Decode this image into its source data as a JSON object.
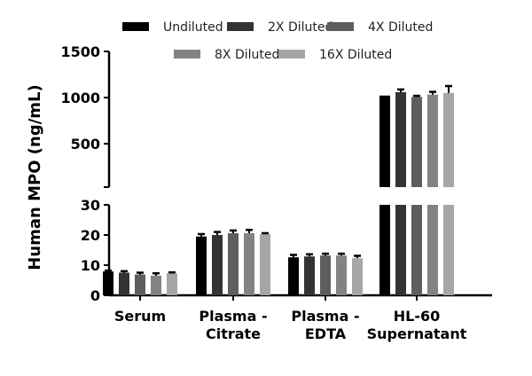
{
  "chart_data": {
    "type": "bar",
    "title": "",
    "xlabel": "",
    "ylabel": "Human MPO (ng/mL)",
    "categories": [
      [
        "Serum"
      ],
      [
        "Plasma -",
        "Citrate"
      ],
      [
        "Plasma -",
        "EDTA"
      ],
      [
        "HL-60",
        "Supernatant"
      ]
    ],
    "y_axis_broken": true,
    "ylim_lower": [
      0,
      30
    ],
    "ylim_upper": [
      30,
      1500
    ],
    "yticks_lower": [
      0,
      10,
      20,
      30
    ],
    "yticks_upper": [
      500,
      1000,
      1500
    ],
    "legend_position": "top",
    "series": [
      {
        "name": "Undiluted",
        "color": "#000000",
        "values": [
          7.9,
          19.5,
          12.6,
          1022
        ],
        "errors": [
          0.3,
          0.8,
          0.8,
          0
        ]
      },
      {
        "name": "2X Diluted",
        "color": "#333333",
        "values": [
          7.5,
          20.0,
          12.9,
          1058
        ],
        "errors": [
          0.5,
          1.0,
          0.7,
          30
        ]
      },
      {
        "name": "4X Diluted",
        "color": "#5e5e5e",
        "values": [
          6.9,
          20.6,
          13.2,
          1007
        ],
        "errors": [
          0.6,
          0.9,
          0.6,
          12
        ]
      },
      {
        "name": "8X Diluted",
        "color": "#838383",
        "values": [
          6.5,
          20.6,
          13.2,
          1032
        ],
        "errors": [
          0.8,
          1.1,
          0.6,
          30
        ]
      },
      {
        "name": "16X Diluted",
        "color": "#a6a6a6",
        "values": [
          7.3,
          20.3,
          12.3,
          1050
        ],
        "errors": [
          0.3,
          0.3,
          0.8,
          75
        ]
      }
    ]
  }
}
